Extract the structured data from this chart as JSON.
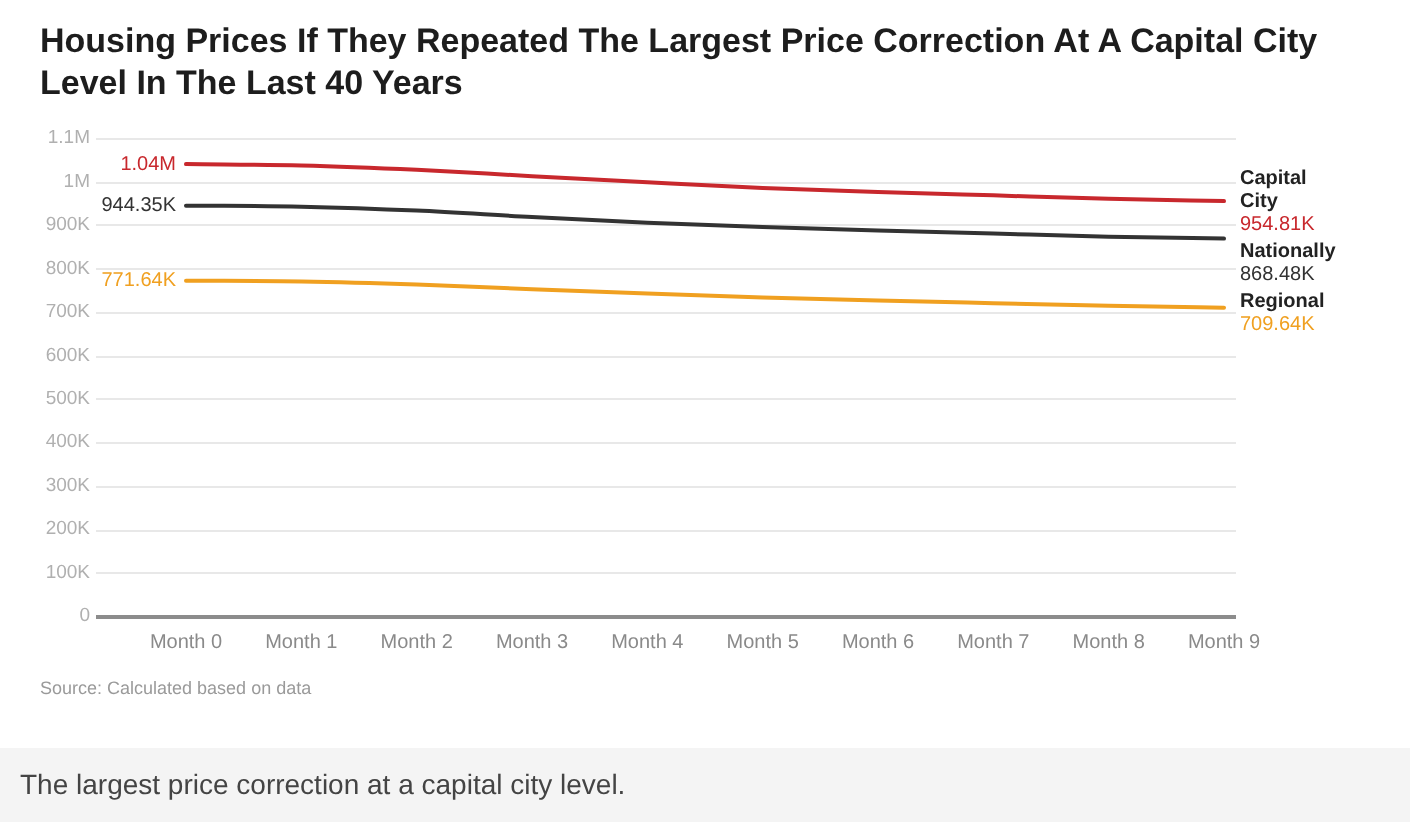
{
  "chart_data": {
    "type": "line",
    "title": "Housing Prices If They Repeated The Largest Price Correction At A Capital City Level In The Last 40 Years",
    "categories": [
      "Month 0",
      "Month 1",
      "Month 2",
      "Month 3",
      "Month 4",
      "Month 5",
      "Month 6",
      "Month 7",
      "Month 8",
      "Month 9"
    ],
    "series": [
      {
        "name": "Capital City",
        "color": "#c8282d",
        "values": [
          1040000,
          1037000,
          1027000,
          1012000,
          998000,
          985000,
          976000,
          968000,
          960000,
          954810
        ],
        "value_labels": [
          "1.04M",
          null,
          null,
          null,
          null,
          null,
          null,
          null,
          null,
          "954.81K"
        ]
      },
      {
        "name": "Nationally",
        "color": "#333333",
        "values": [
          944350,
          942000,
          933000,
          918000,
          905000,
          895000,
          887000,
          880000,
          873000,
          868480
        ],
        "value_labels": [
          "944.35K",
          null,
          null,
          null,
          null,
          null,
          null,
          null,
          null,
          "868.48K"
        ]
      },
      {
        "name": "Regional",
        "color": "#f0a020",
        "values": [
          771640,
          770000,
          763000,
          752000,
          742000,
          733000,
          726000,
          720000,
          714000,
          709640
        ],
        "value_labels": [
          "771.64K",
          null,
          null,
          null,
          null,
          null,
          null,
          null,
          null,
          "709.64K"
        ]
      }
    ],
    "ylim": [
      0,
      1100000
    ],
    "yticks": [
      0,
      {
        "value": 100000,
        "label": "100K"
      },
      {
        "value": 200000,
        "label": "200K"
      },
      {
        "value": 300000,
        "label": "300K"
      },
      {
        "value": 400000,
        "label": "400K"
      },
      {
        "value": 500000,
        "label": "500K"
      },
      {
        "value": 600000,
        "label": "600K"
      },
      {
        "value": 700000,
        "label": "700K"
      },
      {
        "value": 800000,
        "label": "800K"
      },
      {
        "value": 900000,
        "label": "900K"
      },
      {
        "value": 1000000,
        "label": "1M"
      },
      {
        "value": 1100000,
        "label": "1.1M"
      }
    ],
    "grid": "y",
    "annotations": [
      "Source: Calculated based on data",
      "The largest price correction at a capital city level."
    ]
  }
}
